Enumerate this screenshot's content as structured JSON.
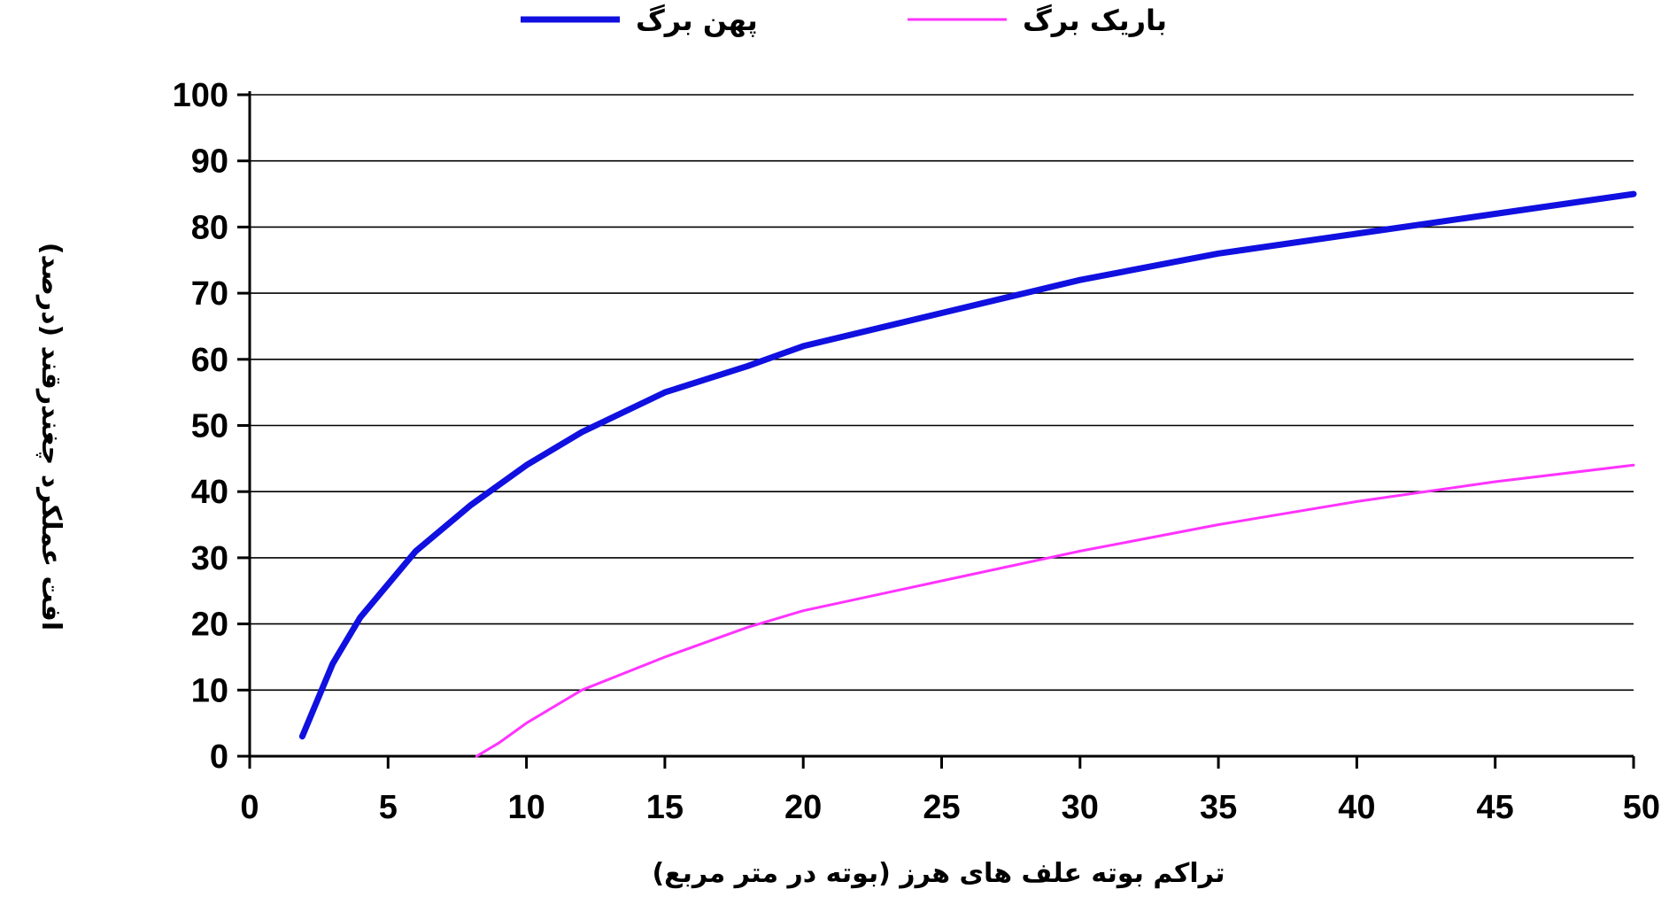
{
  "chart_data": {
    "type": "line",
    "title": "",
    "xlabel": "تراکم بوته علف های هرز (بوته در متر مربع)",
    "ylabel": "افت عملکرد چغندرقند (درصد)",
    "xlim": [
      0,
      50
    ],
    "ylim": [
      0,
      100
    ],
    "x_ticks": [
      "0",
      "5",
      "10",
      "15",
      "20",
      "25",
      "30",
      "35",
      "40",
      "45",
      "50"
    ],
    "y_ticks": [
      "0",
      "10",
      "20",
      "30",
      "40",
      "50",
      "60",
      "70",
      "80",
      "90",
      "100"
    ],
    "grid": "horizontal",
    "legend_position": "top",
    "series": [
      {
        "name": "پهن برگ",
        "color": "#1010e0",
        "points": [
          [
            1.9,
            3
          ],
          [
            2.5,
            9
          ],
          [
            3,
            14
          ],
          [
            4,
            21
          ],
          [
            5,
            26
          ],
          [
            6,
            31
          ],
          [
            8,
            38
          ],
          [
            10,
            44
          ],
          [
            12,
            49
          ],
          [
            15,
            55
          ],
          [
            18,
            59
          ],
          [
            20,
            62
          ],
          [
            25,
            67
          ],
          [
            28,
            70
          ],
          [
            30,
            72
          ],
          [
            35,
            76
          ],
          [
            40,
            79
          ],
          [
            45,
            82
          ],
          [
            50,
            85
          ]
        ]
      },
      {
        "name": "باریک برگ",
        "color": "#ff33ff",
        "points": [
          [
            8.2,
            0
          ],
          [
            9,
            2
          ],
          [
            10,
            5
          ],
          [
            12,
            10
          ],
          [
            15,
            15
          ],
          [
            18,
            19.5
          ],
          [
            20,
            22
          ],
          [
            25,
            26.5
          ],
          [
            30,
            31
          ],
          [
            35,
            35
          ],
          [
            40,
            38.5
          ],
          [
            45,
            41.5
          ],
          [
            50,
            44
          ]
        ]
      }
    ]
  }
}
